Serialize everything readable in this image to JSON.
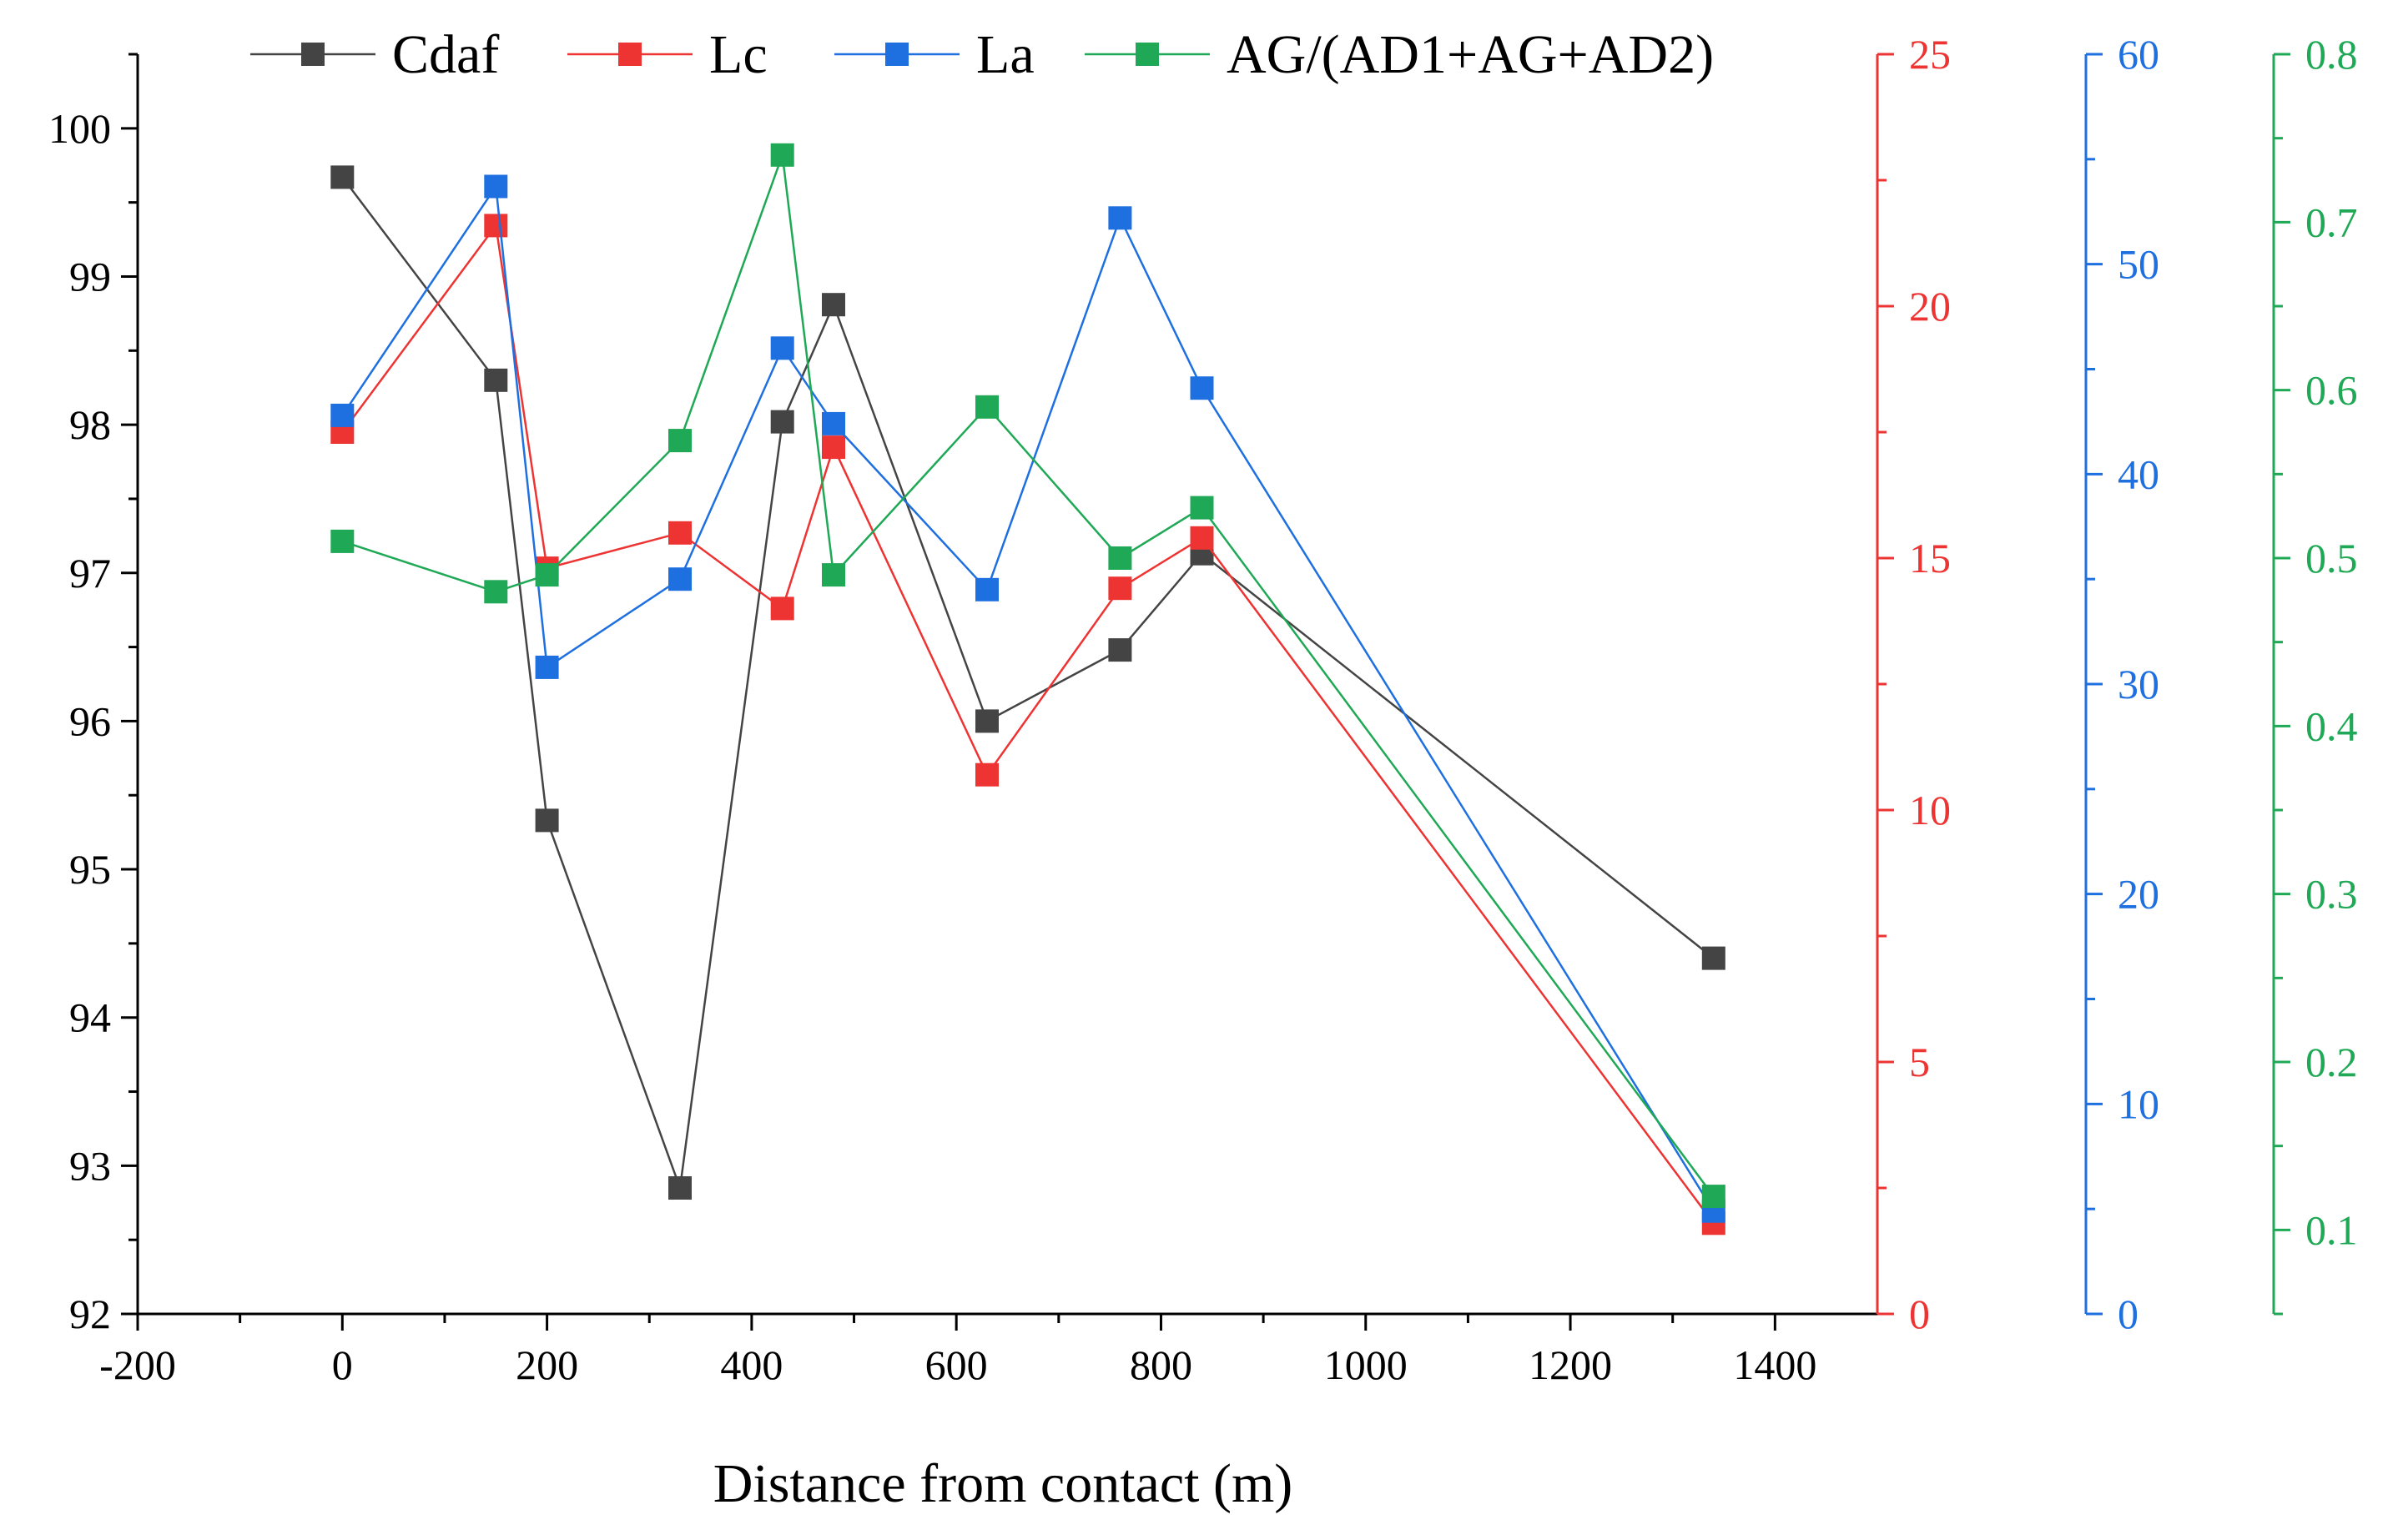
{
  "chart_data": {
    "type": "line",
    "title": "",
    "xlabel": "Distance from contact (m)",
    "xlim": [
      -200,
      1500
    ],
    "xticks": [
      -200,
      0,
      200,
      400,
      600,
      800,
      1000,
      1200,
      1400
    ],
    "axes": [
      {
        "id": "left",
        "color": "#000000",
        "lim": [
          92,
          100.5
        ],
        "ticks": [
          92,
          93,
          94,
          95,
          96,
          97,
          98,
          99,
          100
        ]
      },
      {
        "id": "red",
        "color": "#ee3333",
        "lim": [
          0,
          25
        ],
        "ticks": [
          0,
          5,
          10,
          15,
          20,
          25
        ]
      },
      {
        "id": "blue",
        "color": "#1e6fe0",
        "lim": [
          0,
          60
        ],
        "ticks": [
          0,
          10,
          20,
          30,
          40,
          50,
          60
        ]
      },
      {
        "id": "green",
        "color": "#1fa855",
        "lim": [
          0.05,
          0.8
        ],
        "ticks": [
          0.1,
          0.2,
          0.3,
          0.4,
          0.5,
          0.6,
          0.7,
          0.8
        ]
      }
    ],
    "series": [
      {
        "name": "Cdaf",
        "color": "#444444",
        "axis": "left",
        "x": [
          0,
          150,
          200,
          330,
          430,
          480,
          630,
          760,
          840,
          1340
        ],
        "values": [
          99.67,
          98.3,
          95.33,
          92.85,
          98.02,
          98.81,
          96.0,
          96.48,
          97.13,
          94.4
        ]
      },
      {
        "name": "Lc",
        "color": "#ee3333",
        "axis": "red",
        "x": [
          0,
          150,
          200,
          330,
          430,
          480,
          630,
          760,
          840,
          1340
        ],
        "values": [
          17.5,
          21.6,
          14.8,
          15.5,
          14.0,
          17.2,
          10.7,
          14.4,
          15.4,
          1.8
        ]
      },
      {
        "name": "La",
        "color": "#1e6fe0",
        "axis": "blue",
        "x": [
          0,
          150,
          200,
          330,
          430,
          480,
          630,
          760,
          840,
          1340
        ],
        "values": [
          42.8,
          53.7,
          30.8,
          35.0,
          46.0,
          42.4,
          34.5,
          52.2,
          44.1,
          4.9
        ]
      },
      {
        "name": "AG/(AD1+AG+AD2)",
        "color": "#1fa855",
        "axis": "green",
        "x": [
          0,
          150,
          200,
          330,
          430,
          480,
          630,
          760,
          840,
          1340
        ],
        "values": [
          0.51,
          0.48,
          0.49,
          0.57,
          0.74,
          0.49,
          0.59,
          0.5,
          0.53,
          0.12
        ]
      }
    ],
    "legend_position": "top"
  }
}
